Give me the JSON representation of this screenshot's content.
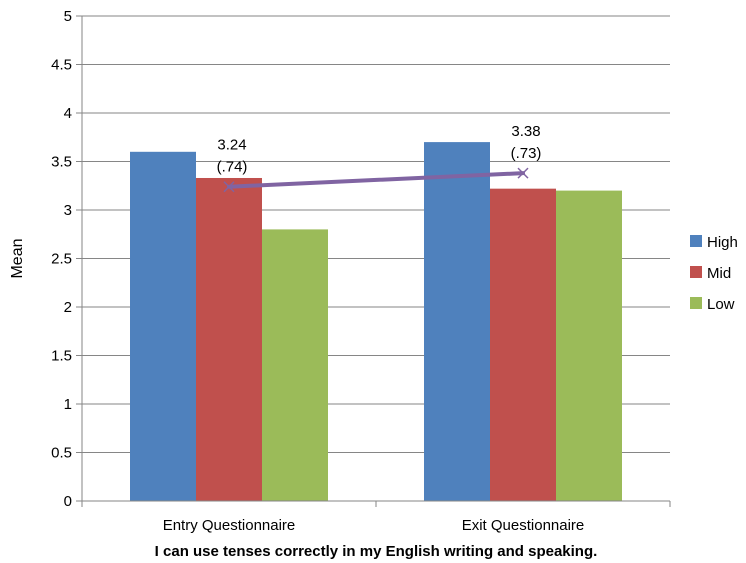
{
  "chart_data": {
    "type": "bar",
    "categories": [
      "Entry Questionnaire",
      "Exit Questionnaire"
    ],
    "series": [
      {
        "name": "High",
        "values": [
          3.6,
          3.7
        ],
        "color": "#4f81bd"
      },
      {
        "name": "Mid",
        "values": [
          3.33,
          3.22
        ],
        "color": "#c0504d"
      },
      {
        "name": "Low",
        "values": [
          2.8,
          3.2
        ],
        "color": "#9bbb59"
      }
    ],
    "mean_line": {
      "values": [
        3.24,
        3.38
      ],
      "color": "#8064a2",
      "annotations": [
        {
          "line1": "3.24",
          "line2": "(.74)"
        },
        {
          "line1": "3.38",
          "line2": "(.73)"
        }
      ]
    },
    "xlabel": "I can use tenses correctly in my English writing and speaking.",
    "ylabel": "Mean",
    "ylim": [
      0,
      5
    ],
    "yticks": [
      "0",
      "0.5",
      "1",
      "1.5",
      "2",
      "2.5",
      "3",
      "3.5",
      "4",
      "4.5",
      "5"
    ],
    "grid": true,
    "legend_position": "right"
  }
}
